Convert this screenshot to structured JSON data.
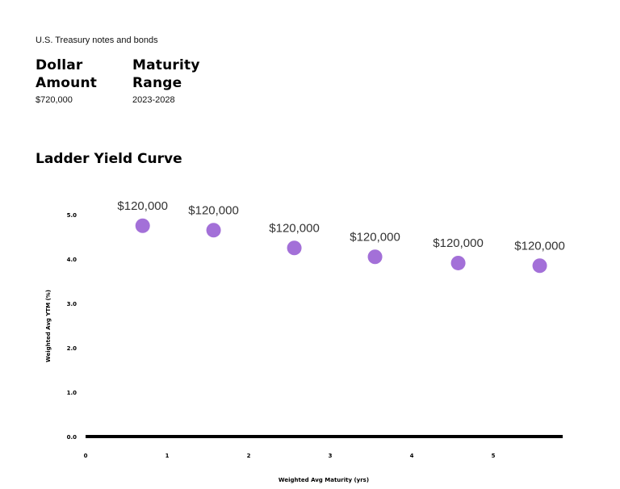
{
  "header": {
    "subtitle": "U.S. Treasury notes and bonds",
    "stats": [
      {
        "label": "Dollar\nAmount",
        "value": "$720,000"
      },
      {
        "label": "Maturity\nRange",
        "value": "2023-2028"
      }
    ]
  },
  "chart_data": {
    "type": "scatter",
    "title": "Ladder Yield Curve",
    "xlabel": "Weighted Avg Maturity (yrs)",
    "ylabel": "Weighted Avg YTM (%)",
    "xlim": [
      0,
      5.9
    ],
    "ylim": [
      0,
      5.0
    ],
    "xticks": [
      "0",
      "1",
      "2",
      "3",
      "4",
      "5"
    ],
    "yticks": [
      "0.0",
      "1.0",
      "2.0",
      "3.0",
      "4.0",
      "5.0"
    ],
    "grid": false,
    "series": [
      {
        "x": [
          0.7,
          1.57,
          2.56,
          3.55,
          4.57,
          5.57
        ],
        "y": [
          4.75,
          4.65,
          4.25,
          4.05,
          3.91,
          3.85
        ],
        "labels": [
          "$120,000",
          "$120,000",
          "$120,000",
          "$120,000",
          "$120,000",
          "$120,000"
        ],
        "color": "#a370d8"
      }
    ]
  }
}
